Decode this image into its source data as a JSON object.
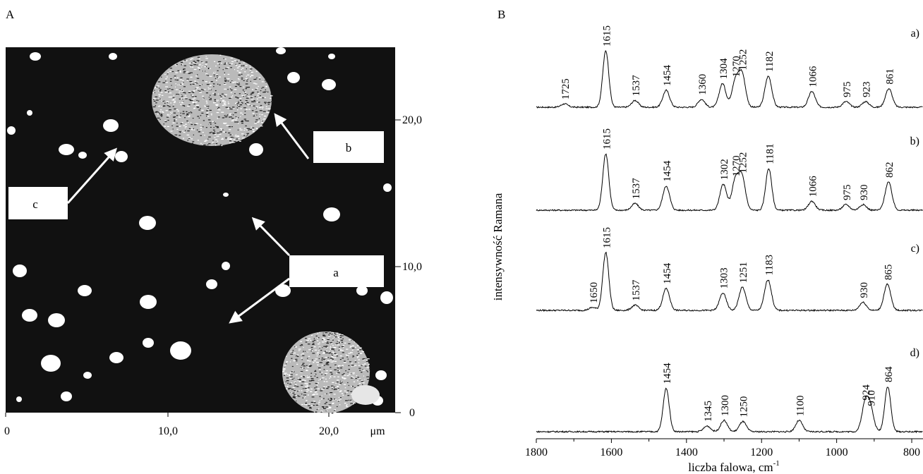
{
  "panel_a": {
    "label": "A",
    "x_ticks": [
      "0",
      "10,0",
      "20,0"
    ],
    "x_unit": "μm",
    "y_ticks": [
      "0",
      "10,0",
      "20,0"
    ],
    "callouts": [
      {
        "id": "a",
        "label": "a"
      },
      {
        "id": "b",
        "label": "b"
      },
      {
        "id": "c",
        "label": "c"
      }
    ],
    "colors": {
      "background": "#111111",
      "particles": "#ffffff"
    }
  },
  "chart_data": {
    "type": "line",
    "panel_label": "B",
    "xlabel": "liczba falowa, cm",
    "xlabel_superscript": "-1",
    "ylabel": "intensywność Ramana",
    "x_reversed": true,
    "xlim": [
      1800,
      770
    ],
    "x_ticks": [
      1800,
      1600,
      1400,
      1200,
      1000,
      800
    ],
    "grid": false,
    "series": [
      {
        "name": "a)",
        "peaks": [
          {
            "x": 1725,
            "label": "1725",
            "h": 0.06
          },
          {
            "x": 1615,
            "label": "1615",
            "h": 1.0
          },
          {
            "x": 1537,
            "label": "1537",
            "h": 0.12
          },
          {
            "x": 1454,
            "label": "1454",
            "h": 0.3
          },
          {
            "x": 1360,
            "label": "1360",
            "h": 0.14
          },
          {
            "x": 1304,
            "label": "1304",
            "h": 0.42
          },
          {
            "x": 1270,
            "label": "1270",
            "h": 0.46
          },
          {
            "x": 1252,
            "label": "1252",
            "h": 0.58
          },
          {
            "x": 1182,
            "label": "1182",
            "h": 0.55
          },
          {
            "x": 1066,
            "label": "1066",
            "h": 0.28
          },
          {
            "x": 975,
            "label": "975",
            "h": 0.1
          },
          {
            "x": 923,
            "label": "923",
            "h": 0.1
          },
          {
            "x": 861,
            "label": "861",
            "h": 0.33
          }
        ]
      },
      {
        "name": "b)",
        "peaks": [
          {
            "x": 1615,
            "label": "1615",
            "h": 1.0
          },
          {
            "x": 1537,
            "label": "1537",
            "h": 0.12
          },
          {
            "x": 1454,
            "label": "1454",
            "h": 0.43
          },
          {
            "x": 1302,
            "label": "1302",
            "h": 0.46
          },
          {
            "x": 1270,
            "label": "1270",
            "h": 0.52
          },
          {
            "x": 1252,
            "label": "1252",
            "h": 0.58
          },
          {
            "x": 1181,
            "label": "1181",
            "h": 0.74
          },
          {
            "x": 1066,
            "label": "1066",
            "h": 0.16
          },
          {
            "x": 975,
            "label": "975",
            "h": 0.1
          },
          {
            "x": 930,
            "label": "930",
            "h": 0.1
          },
          {
            "x": 862,
            "label": "862",
            "h": 0.5
          }
        ]
      },
      {
        "name": "c)",
        "peaks": [
          {
            "x": 1650,
            "label": "1650",
            "h": 0.05
          },
          {
            "x": 1615,
            "label": "1615",
            "h": 1.0
          },
          {
            "x": 1537,
            "label": "1537",
            "h": 0.09
          },
          {
            "x": 1454,
            "label": "1454",
            "h": 0.38
          },
          {
            "x": 1303,
            "label": "1303",
            "h": 0.3
          },
          {
            "x": 1251,
            "label": "1251",
            "h": 0.4
          },
          {
            "x": 1183,
            "label": "1183",
            "h": 0.53
          },
          {
            "x": 930,
            "label": "930",
            "h": 0.14
          },
          {
            "x": 865,
            "label": "865",
            "h": 0.45
          }
        ]
      },
      {
        "name": "d)",
        "peaks": [
          {
            "x": 1454,
            "label": "1454",
            "h": 0.77
          },
          {
            "x": 1345,
            "label": "1345",
            "h": 0.1
          },
          {
            "x": 1300,
            "label": "1300",
            "h": 0.2
          },
          {
            "x": 1250,
            "label": "1250",
            "h": 0.18
          },
          {
            "x": 1100,
            "label": "1100",
            "h": 0.2
          },
          {
            "x": 924,
            "label": "924",
            "h": 0.48
          },
          {
            "x": 910,
            "label": "910",
            "h": 0.38
          },
          {
            "x": 864,
            "label": "864",
            "h": 0.8
          }
        ]
      }
    ]
  }
}
